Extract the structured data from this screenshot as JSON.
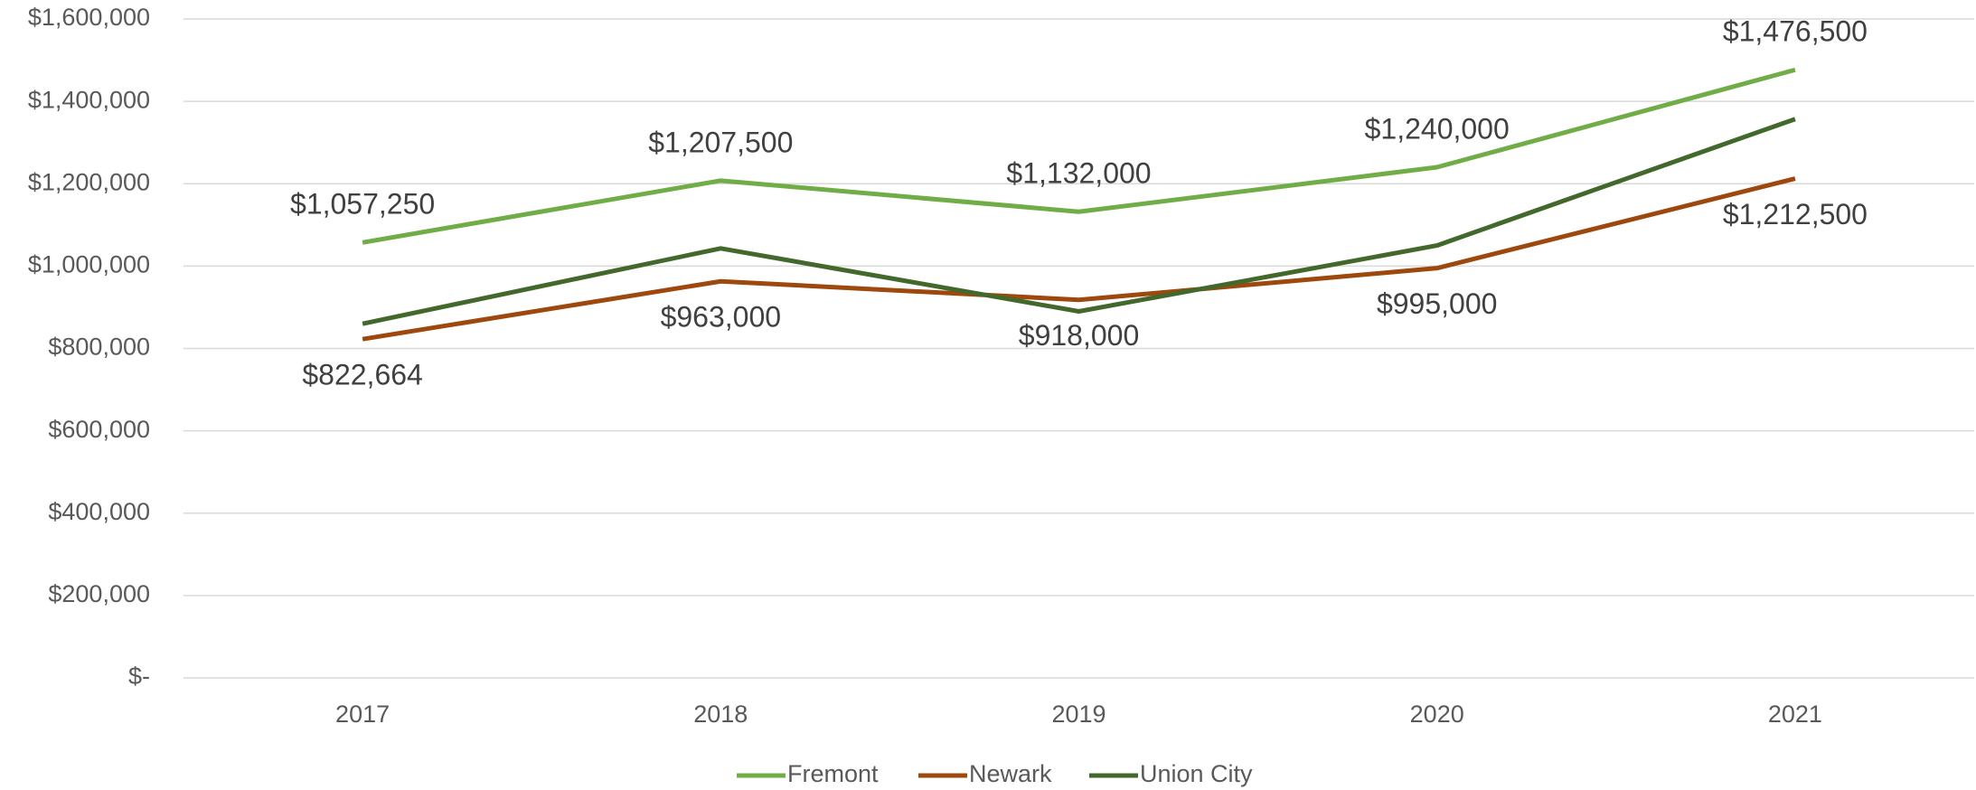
{
  "chart_data": {
    "type": "line",
    "categories": [
      "2017",
      "2018",
      "2019",
      "2020",
      "2021"
    ],
    "series": [
      {
        "name": "Fremont",
        "color": "#70ad47",
        "values": [
          1057250,
          1207500,
          1132000,
          1240000,
          1476500
        ],
        "value_labels": [
          "$1,057,250",
          "$1,207,500",
          "$1,132,000",
          "$1,240,000",
          "$1,476,500"
        ]
      },
      {
        "name": "Newark",
        "color": "#9e480e",
        "values": [
          822664,
          963000,
          918000,
          995000,
          1212500
        ],
        "value_labels": [
          "$822,664",
          "$963,000",
          "$918,000",
          "$995,000",
          "$1,212,500"
        ]
      },
      {
        "name": "Union City",
        "color": "#43682b",
        "values": [
          860000,
          1043000,
          890000,
          1050000,
          1357000
        ]
      }
    ],
    "ylim": [
      0,
      1600000
    ],
    "yticks": [
      {
        "value": 0,
        "label": "$-"
      },
      {
        "value": 200000,
        "label": "$200,000"
      },
      {
        "value": 400000,
        "label": "$400,000"
      },
      {
        "value": 600000,
        "label": "$600,000"
      },
      {
        "value": 800000,
        "label": "$800,000"
      },
      {
        "value": 1000000,
        "label": "$1,000,000"
      },
      {
        "value": 1200000,
        "label": "$1,200,000"
      },
      {
        "value": 1400000,
        "label": "$1,400,000"
      },
      {
        "value": 1600000,
        "label": "$1,600,000"
      }
    ],
    "grid": true,
    "legend": "bottom"
  }
}
